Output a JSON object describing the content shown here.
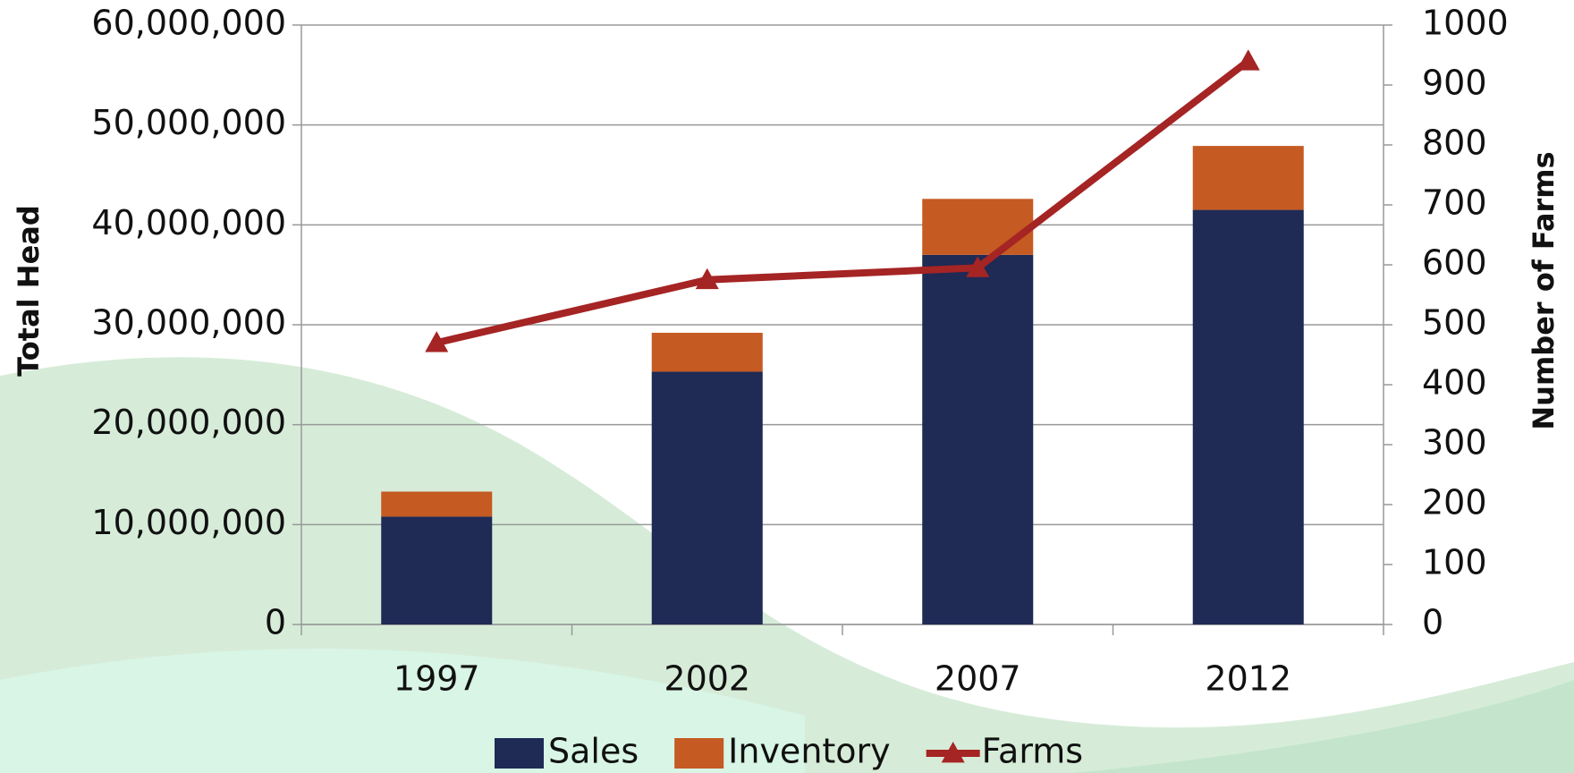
{
  "chart_data": {
    "type": "bar-line",
    "categories": [
      "1997",
      "2002",
      "2007",
      "2012"
    ],
    "series": [
      {
        "name": "Sales",
        "type": "bar",
        "color": "#1f2a55",
        "values": [
          10800000,
          25300000,
          37000000,
          41500000
        ]
      },
      {
        "name": "Inventory",
        "type": "bar",
        "color": "#c55a22",
        "values": [
          2500000,
          3900000,
          5600000,
          6400000
        ]
      },
      {
        "name": "Farms",
        "type": "line",
        "axis": "y2",
        "color": "#a52424",
        "values": [
          470,
          575,
          595,
          940
        ]
      }
    ],
    "stacked": true,
    "y_label": "Total Head",
    "y2_label": "Number of Farms",
    "ylim": [
      0,
      60000000
    ],
    "yticks": [
      0,
      {
        "value": 10000000,
        "label": "10,000,000"
      },
      {
        "value": 20000000,
        "label": "20,000,000"
      },
      {
        "value": 30000000,
        "label": "30,000,000"
      },
      {
        "value": 40000000,
        "label": "40,000,000"
      },
      {
        "value": 50000000,
        "label": "50,000,000"
      },
      {
        "value": 60000000,
        "label": "60,000,000"
      }
    ],
    "y2lim": [
      0,
      1000
    ],
    "y2ticks": [
      0,
      100,
      200,
      300,
      400,
      500,
      600,
      700,
      800,
      900,
      1000
    ],
    "grid": true,
    "legend": "bottom"
  }
}
